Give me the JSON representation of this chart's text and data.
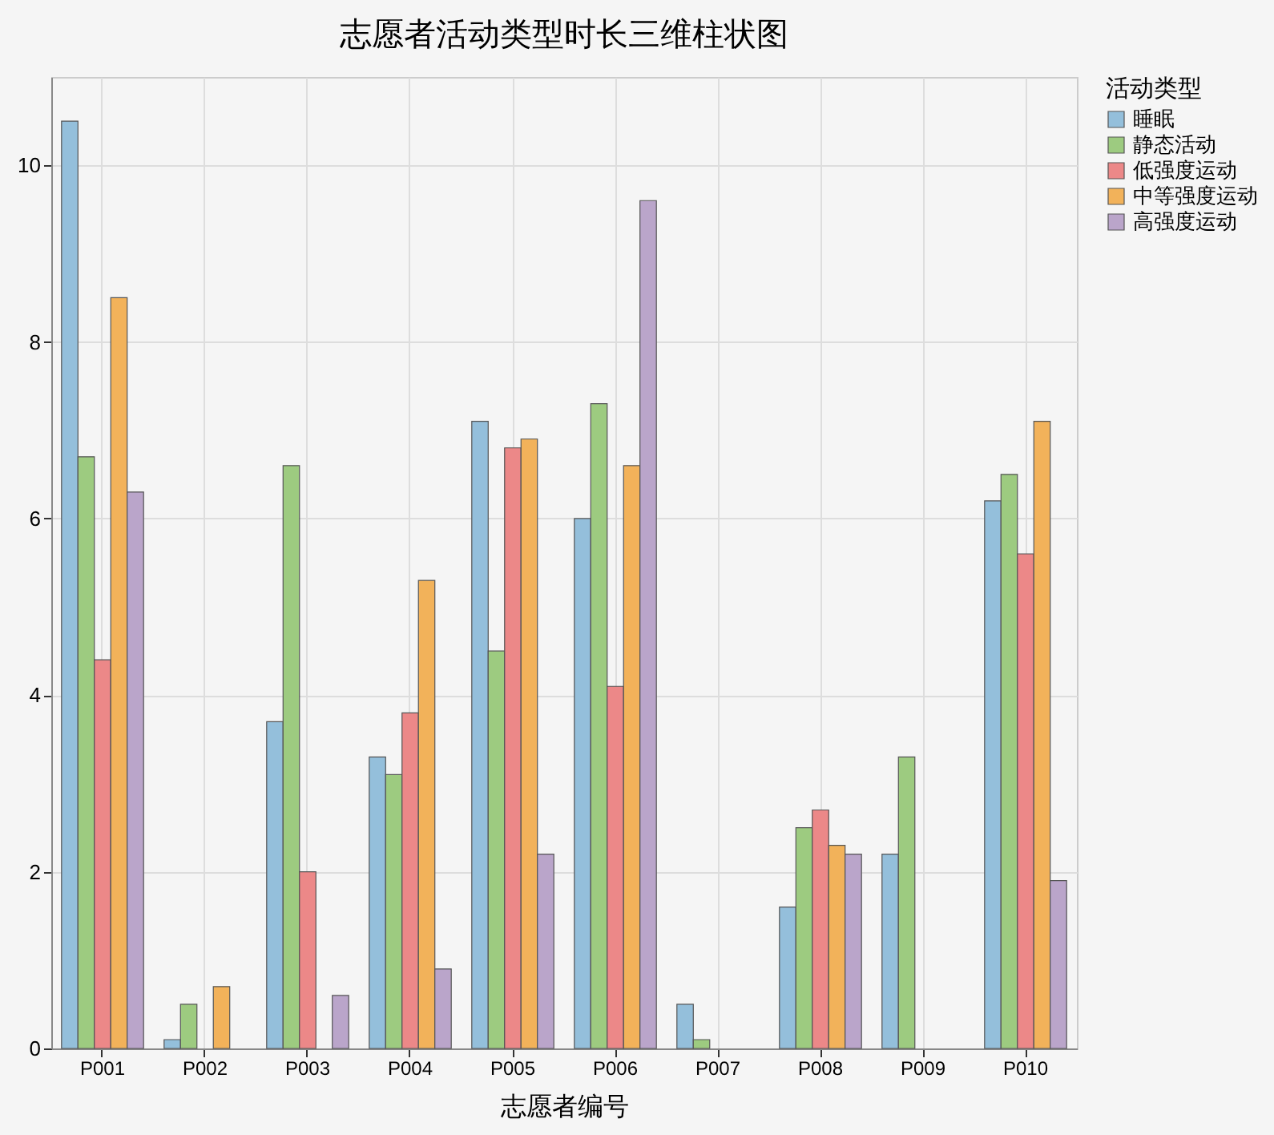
{
  "chart_data": {
    "type": "bar",
    "title": "志愿者活动类型时长三维柱状图",
    "xlabel": "志愿者编号",
    "legend_title": "活动类型",
    "categories": [
      "P001",
      "P002",
      "P003",
      "P004",
      "P005",
      "P006",
      "P007",
      "P008",
      "P009",
      "P010"
    ],
    "series": [
      {
        "name": "睡眠",
        "color": "#94bfdb",
        "values": [
          10.5,
          0.1,
          3.7,
          3.3,
          7.1,
          6.0,
          0.5,
          1.6,
          2.2,
          6.2
        ]
      },
      {
        "name": "静态活动",
        "color": "#9dcb80",
        "values": [
          6.7,
          0.5,
          6.6,
          3.1,
          4.5,
          7.3,
          0.1,
          2.5,
          3.3,
          6.5
        ]
      },
      {
        "name": "低强度运动",
        "color": "#ec8888",
        "values": [
          4.4,
          null,
          2.0,
          3.8,
          6.8,
          4.1,
          null,
          2.7,
          null,
          5.6
        ]
      },
      {
        "name": "中等强度运动",
        "color": "#f2b25a",
        "values": [
          8.5,
          0.7,
          null,
          5.3,
          6.9,
          6.6,
          null,
          2.3,
          null,
          7.1
        ]
      },
      {
        "name": "高强度运动",
        "color": "#baa5ca",
        "values": [
          6.3,
          null,
          0.6,
          0.9,
          2.2,
          9.6,
          null,
          2.2,
          null,
          1.9
        ]
      }
    ],
    "ylim": [
      0,
      11
    ],
    "yticks": [
      0,
      2,
      4,
      6,
      8,
      10
    ],
    "grid": true,
    "legend": "right"
  }
}
